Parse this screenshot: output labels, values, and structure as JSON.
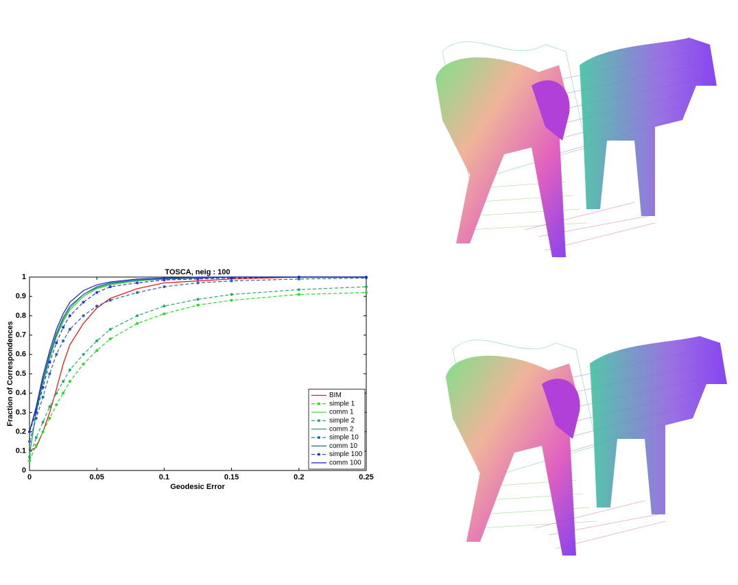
{
  "chart_data": {
    "type": "line",
    "title": "TOSCA, neig : 100",
    "xlabel": "Geodesic Error",
    "ylabel": "Fraction of Correspondences",
    "x": [
      0,
      0.005,
      0.01,
      0.015,
      0.02,
      0.025,
      0.03,
      0.04,
      0.05,
      0.06,
      0.08,
      0.1,
      0.125,
      0.15,
      0.2,
      0.25
    ],
    "xlim": [
      0,
      0.25
    ],
    "xticks": [
      0,
      0.05,
      0.1,
      0.15,
      0.2,
      0.25
    ],
    "ylim": [
      0,
      1
    ],
    "yticks": [
      0,
      0.1,
      0.2,
      0.3,
      0.4,
      0.5,
      0.6,
      0.7,
      0.8,
      0.9,
      1
    ],
    "legend": "lower right",
    "grid": false,
    "series": [
      {
        "name": "BIM",
        "color": "#ff0000",
        "style": "solid",
        "marker": false,
        "values": [
          0.1,
          0.12,
          0.2,
          0.3,
          0.42,
          0.55,
          0.65,
          0.76,
          0.84,
          0.89,
          0.94,
          0.97,
          0.98,
          0.99,
          1,
          1
        ]
      },
      {
        "name": "simple 1",
        "color": "#22dd22",
        "style": "dashed",
        "marker": true,
        "values": [
          0.05,
          0.13,
          0.2,
          0.27,
          0.34,
          0.4,
          0.46,
          0.55,
          0.62,
          0.68,
          0.76,
          0.81,
          0.855,
          0.88,
          0.91,
          0.92
        ]
      },
      {
        "name": "comm 1",
        "color": "#33cc33",
        "style": "solid",
        "marker": false,
        "values": [
          0.08,
          0.3,
          0.45,
          0.58,
          0.69,
          0.77,
          0.83,
          0.9,
          0.94,
          0.96,
          0.98,
          0.99,
          0.995,
          1,
          1,
          1
        ]
      },
      {
        "name": "simple 2",
        "color": "#22aa66",
        "style": "dashed",
        "marker": true,
        "values": [
          0.07,
          0.17,
          0.25,
          0.33,
          0.4,
          0.46,
          0.52,
          0.6,
          0.67,
          0.73,
          0.8,
          0.85,
          0.885,
          0.91,
          0.935,
          0.95
        ]
      },
      {
        "name": "comm 2",
        "color": "#229977",
        "style": "solid",
        "marker": false,
        "values": [
          0.08,
          0.31,
          0.46,
          0.59,
          0.7,
          0.78,
          0.84,
          0.91,
          0.945,
          0.965,
          0.985,
          0.99,
          0.995,
          1,
          1,
          1
        ]
      },
      {
        "name": "simple 10",
        "color": "#2266aa",
        "style": "dashed",
        "marker": true,
        "values": [
          0.15,
          0.27,
          0.38,
          0.5,
          0.6,
          0.67,
          0.73,
          0.8,
          0.85,
          0.88,
          0.92,
          0.95,
          0.97,
          0.98,
          0.99,
          0.995
        ]
      },
      {
        "name": "comm 10",
        "color": "#226699",
        "style": "solid",
        "marker": false,
        "values": [
          0.2,
          0.32,
          0.47,
          0.6,
          0.71,
          0.79,
          0.85,
          0.91,
          0.95,
          0.97,
          0.985,
          0.99,
          0.995,
          1,
          1,
          1
        ]
      },
      {
        "name": "simple 100",
        "color": "#2233dd",
        "style": "dashed",
        "marker": true,
        "values": [
          0.2,
          0.3,
          0.43,
          0.56,
          0.66,
          0.74,
          0.8,
          0.87,
          0.92,
          0.95,
          0.97,
          0.985,
          0.99,
          0.995,
          1,
          1
        ]
      },
      {
        "name": "comm 100",
        "color": "#1122bb",
        "style": "solid",
        "marker": false,
        "values": [
          0.2,
          0.33,
          0.49,
          0.62,
          0.73,
          0.81,
          0.87,
          0.93,
          0.96,
          0.975,
          0.99,
          0.995,
          1,
          1,
          1,
          1
        ]
      }
    ]
  }
}
